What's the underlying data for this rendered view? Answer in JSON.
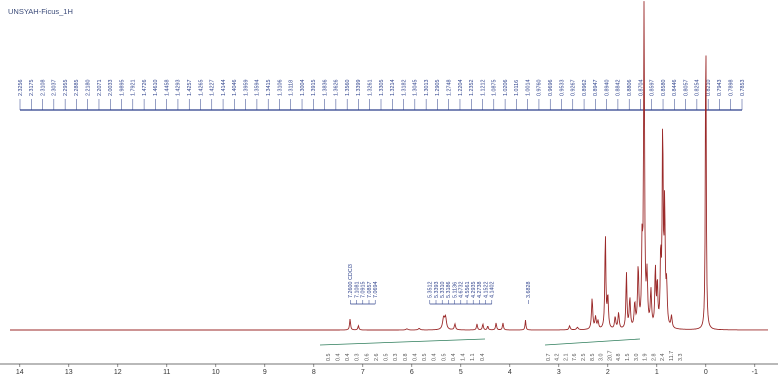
{
  "title": "UNSYAH-Ficus_1H",
  "chart_data": {
    "type": "line",
    "title": "UNSYAH-Ficus_1H",
    "xlabel": "",
    "ylabel": "",
    "x_reversed": true,
    "xlim": [
      14.2,
      -1.8
    ],
    "x_ticks": [
      "14",
      "13",
      "12",
      "11",
      "10",
      "9",
      "8",
      "7",
      "6",
      "5",
      "4",
      "3",
      "2",
      "1",
      "0",
      "-1"
    ],
    "colors": {
      "spectrum": "#9b2a2a",
      "peak_labels": "#2b3f8a",
      "integrals": "#2e7d5b",
      "axis": "#444444"
    },
    "top_peak_labels": [
      "2.3256",
      "2.3175",
      "2.3108",
      "2.3037",
      "2.2955",
      "2.2885",
      "2.2180",
      "2.2071",
      "2.0033",
      "1.9895",
      "1.7921",
      "1.4726",
      "1.4610",
      "1.4458",
      "1.4293",
      "1.4257",
      "1.4265",
      "1.4227",
      "1.4144",
      "1.4046",
      "1.3959",
      "1.3594",
      "1.3415",
      "1.3106",
      "1.3118",
      "1.3004",
      "1.3915",
      "1.3836",
      "1.3626",
      "1.3560",
      "1.3399",
      "1.3261",
      "1.3305",
      "1.3214",
      "1.3182",
      "1.3045",
      "1.3013",
      "1.2905",
      "1.2748",
      "1.2204",
      "1.2352",
      "1.1212",
      "1.0875",
      "1.0206",
      "1.0116",
      "1.0014",
      "0.9760",
      "0.9696",
      "0.9533",
      "0.9267",
      "0.8962",
      "0.8947",
      "0.8940",
      "0.8842",
      "0.8806",
      "0.8704",
      "0.8597",
      "0.8580",
      "0.8446",
      "0.8057",
      "0.8254",
      "0.8210",
      "0.7943",
      "0.7898",
      "0.7853"
    ],
    "group_peak_labels": [
      {
        "ppm": 7.0,
        "labels": [
          "7.2600 CDCl3",
          "7.1081",
          "7.0915",
          "7.0857",
          "7.0694"
        ]
      },
      {
        "ppm": 5.0,
        "labels": [
          "5.3512",
          "5.3393",
          "5.3310",
          "5.3186",
          "5.1136",
          "4.6732",
          "4.5561",
          "4.2935",
          "4.2738",
          "4.1522",
          "4.1402"
        ]
      },
      {
        "ppm": 3.62,
        "labels": [
          "3.6828"
        ]
      }
    ],
    "integrals_left": [
      "0.5",
      "0.4",
      "0.4",
      "0.3",
      "0.6",
      "2.6",
      "0.5",
      "0.3",
      "0.8",
      "0.4",
      "0.5",
      "0.4",
      "0.5",
      "0.4",
      "1.4",
      "1.1",
      "0.4"
    ],
    "integrals_right": [
      "0.7",
      "4.2",
      "2.1",
      "7.6",
      "2.5",
      "8.5",
      "3.0",
      "20.7",
      "4.8",
      "1.5",
      "3.0",
      "1.9",
      "2.8",
      "2.4",
      "11.7",
      "3.3"
    ],
    "peaks": [
      {
        "ppm": 7.26,
        "h": 0.055,
        "w": 0.012
      },
      {
        "ppm": 7.09,
        "h": 0.022,
        "w": 0.012
      },
      {
        "ppm": 6.1,
        "h": 0.006,
        "w": 0.02
      },
      {
        "ppm": 5.85,
        "h": 0.008,
        "w": 0.02
      },
      {
        "ppm": 5.35,
        "h": 0.06,
        "w": 0.025
      },
      {
        "ppm": 5.31,
        "h": 0.055,
        "w": 0.02
      },
      {
        "ppm": 5.12,
        "h": 0.03,
        "w": 0.015
      },
      {
        "ppm": 4.67,
        "h": 0.03,
        "w": 0.012
      },
      {
        "ppm": 4.55,
        "h": 0.03,
        "w": 0.012
      },
      {
        "ppm": 4.45,
        "h": 0.02,
        "w": 0.012
      },
      {
        "ppm": 4.28,
        "h": 0.035,
        "w": 0.012
      },
      {
        "ppm": 4.14,
        "h": 0.035,
        "w": 0.012
      },
      {
        "ppm": 3.68,
        "h": 0.05,
        "w": 0.01
      },
      {
        "ppm": 2.78,
        "h": 0.02,
        "w": 0.015
      },
      {
        "ppm": 2.62,
        "h": 0.012,
        "w": 0.02
      },
      {
        "ppm": 2.32,
        "h": 0.155,
        "w": 0.015
      },
      {
        "ppm": 2.25,
        "h": 0.06,
        "w": 0.015
      },
      {
        "ppm": 2.2,
        "h": 0.04,
        "w": 0.015
      },
      {
        "ppm": 2.05,
        "h": 0.48,
        "w": 0.012
      },
      {
        "ppm": 2.0,
        "h": 0.16,
        "w": 0.015
      },
      {
        "ppm": 1.85,
        "h": 0.06,
        "w": 0.015
      },
      {
        "ppm": 1.78,
        "h": 0.08,
        "w": 0.015
      },
      {
        "ppm": 1.62,
        "h": 0.28,
        "w": 0.012
      },
      {
        "ppm": 1.55,
        "h": 0.15,
        "w": 0.015
      },
      {
        "ppm": 1.45,
        "h": 0.12,
        "w": 0.015
      },
      {
        "ppm": 1.38,
        "h": 0.3,
        "w": 0.015
      },
      {
        "ppm": 1.3,
        "h": 0.4,
        "w": 0.012
      },
      {
        "ppm": 1.26,
        "h": 1.6,
        "w": 0.012
      },
      {
        "ppm": 1.2,
        "h": 0.25,
        "w": 0.015
      },
      {
        "ppm": 1.12,
        "h": 0.18,
        "w": 0.015
      },
      {
        "ppm": 1.03,
        "h": 0.3,
        "w": 0.012
      },
      {
        "ppm": 0.99,
        "h": 0.22,
        "w": 0.012
      },
      {
        "ppm": 0.92,
        "h": 0.35,
        "w": 0.012
      },
      {
        "ppm": 0.88,
        "h": 1.0,
        "w": 0.012
      },
      {
        "ppm": 0.84,
        "h": 0.6,
        "w": 0.012
      },
      {
        "ppm": 0.8,
        "h": 0.2,
        "w": 0.015
      },
      {
        "ppm": 0.7,
        "h": 0.06,
        "w": 0.015
      },
      {
        "ppm": 0.0,
        "h": 1.6,
        "w": 0.01
      }
    ]
  }
}
